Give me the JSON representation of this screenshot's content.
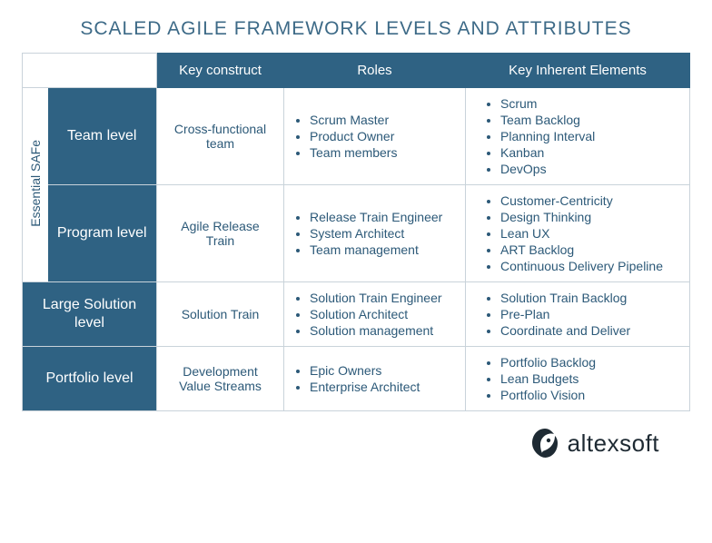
{
  "title": "SCALED AGILE FRAMEWORK LEVELS AND ATTRIBUTES",
  "headers": {
    "construct": "Key construct",
    "roles": "Roles",
    "elements": "Key Inherent Elements"
  },
  "essential_label": "Essential SAFe",
  "rows": [
    {
      "level": "Team level",
      "construct": "Cross-functional team",
      "roles": [
        "Scrum Master",
        "Product Owner",
        "Team members"
      ],
      "elements": [
        "Scrum",
        "Team Backlog",
        "Planning Interval",
        "Kanban",
        "DevOps"
      ]
    },
    {
      "level": "Program level",
      "construct": "Agile Release Train",
      "roles": [
        "Release Train Engineer",
        "System Architect",
        "Team management"
      ],
      "elements": [
        "Customer-Centricity",
        "Design Thinking",
        "Lean UX",
        "ART Backlog",
        "Continuous Delivery Pipeline"
      ]
    },
    {
      "level": "Large Solution level",
      "construct": "Solution Train",
      "roles": [
        "Solution Train Engineer",
        "Solution Architect",
        "Solution management"
      ],
      "elements": [
        "Solution Train Backlog",
        "Pre-Plan",
        "Coordinate and Deliver"
      ]
    },
    {
      "level": "Portfolio level",
      "construct": "Development Value Streams",
      "roles": [
        "Epic Owners",
        "Enterprise Architect"
      ],
      "elements": [
        "Portfolio Backlog",
        "Lean Budgets",
        "Portfolio Vision"
      ]
    }
  ],
  "brand": "altexsoft",
  "colors": {
    "header_bg": "#2f6283",
    "border": "#c9d3da",
    "text": "#2c5978"
  }
}
